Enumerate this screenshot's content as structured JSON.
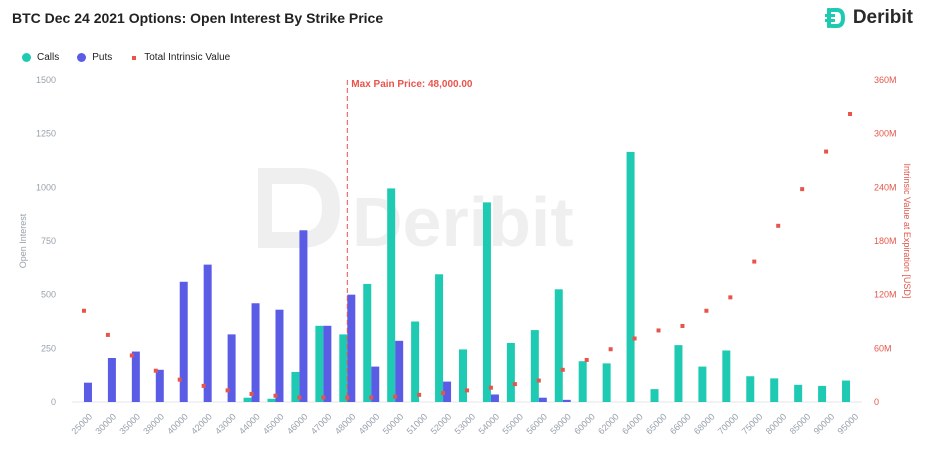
{
  "header": {
    "title": "BTC Dec 24 2021 Options: Open Interest By Strike Price",
    "brand": "Deribit",
    "watermark": "Deribit"
  },
  "colors": {
    "calls": "#1ecbb2",
    "puts": "#5b5ce6",
    "intrinsic": "#e8544c",
    "maxpain": "#e8544c",
    "axis_text": "#9aa1ac"
  },
  "legend": [
    {
      "label": "Calls",
      "color": "#1ecbb2",
      "marker": "circle"
    },
    {
      "label": "Puts",
      "color": "#5b5ce6",
      "marker": "circle"
    },
    {
      "label": "Total Intrinsic Value",
      "color": "#e8544c",
      "marker": "square"
    }
  ],
  "chart_data": {
    "type": "bar",
    "title": "BTC Dec 24 2021 Options: Open Interest By Strike Price",
    "xlabel": "",
    "ylabel": "Open Interest",
    "y2label": "Intrinsic Value at Expiration [USD]",
    "ylim": [
      0,
      1500
    ],
    "y2lim": [
      0,
      360
    ],
    "yticks": [
      "0",
      "250",
      "500",
      "750",
      "1000",
      "1250",
      "1500"
    ],
    "y2ticks": [
      "0",
      "60M",
      "120M",
      "180M",
      "240M",
      "300M",
      "360M"
    ],
    "categories": [
      "25000",
      "30000",
      "35000",
      "38000",
      "40000",
      "42000",
      "43000",
      "44000",
      "45000",
      "46000",
      "47000",
      "48000",
      "49000",
      "50000",
      "51000",
      "52000",
      "53000",
      "54000",
      "55000",
      "56000",
      "58000",
      "60000",
      "62000",
      "64000",
      "65000",
      "66000",
      "68000",
      "70000",
      "75000",
      "80000",
      "85000",
      "90000",
      "95000"
    ],
    "series": [
      {
        "name": "Calls",
        "kind": "bar",
        "values": [
          0,
          0,
          0,
          0,
          0,
          0,
          0,
          20,
          15,
          140,
          355,
          315,
          550,
          995,
          375,
          595,
          245,
          930,
          275,
          335,
          525,
          190,
          180,
          1165,
          60,
          265,
          165,
          240,
          120,
          110,
          80,
          75,
          100
        ]
      },
      {
        "name": "Puts",
        "kind": "bar",
        "values": [
          90,
          205,
          235,
          150,
          560,
          640,
          315,
          460,
          430,
          800,
          355,
          500,
          165,
          285,
          0,
          95,
          0,
          35,
          0,
          20,
          10,
          0,
          0,
          0,
          0,
          0,
          0,
          0,
          0,
          0,
          0,
          0,
          0
        ]
      },
      {
        "name": "Total Intrinsic Value",
        "kind": "scatter",
        "axis": "y2",
        "unit": "M USD",
        "values": [
          102,
          75,
          52,
          35,
          25,
          18,
          13,
          9,
          7,
          5,
          5,
          5,
          5,
          6,
          8,
          10,
          13,
          16,
          20,
          24,
          36,
          47,
          59,
          71,
          80,
          85,
          102,
          117,
          157,
          197,
          238,
          280,
          322
        ]
      }
    ],
    "annotations": [
      {
        "label": "Max Pain Price: 48,000.00",
        "x": "48000"
      }
    ],
    "grid": false,
    "legend_position": "top-left"
  }
}
